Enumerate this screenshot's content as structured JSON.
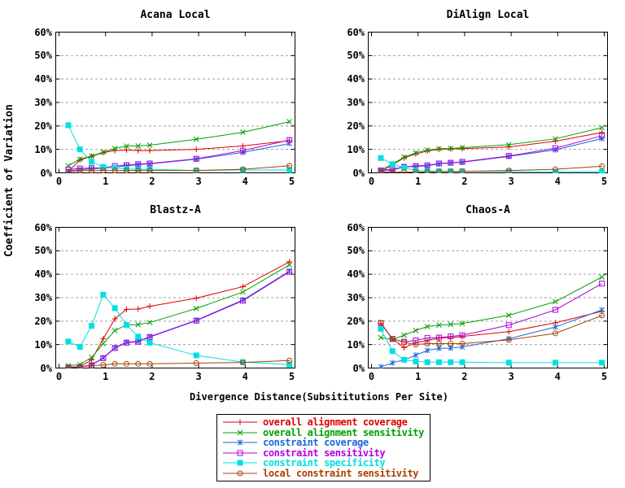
{
  "figure": {
    "ylabel": "Coefficient of Variation",
    "xlabel": "Divergence Distance(Subsititutions Per Site)"
  },
  "palette": {
    "axis": "#000000",
    "grid": "#a0a0a0",
    "background": "#ffffff"
  },
  "series_styles": [
    {
      "label": "overall alignment coverage",
      "color": "#e00000",
      "marker": "plus"
    },
    {
      "label": "overall alignment sensitivity",
      "color": "#00a000",
      "marker": "cross"
    },
    {
      "label": "constraint coverage",
      "color": "#1a66e0",
      "marker": "asterisk"
    },
    {
      "label": "constraint sensitivity",
      "color": "#b200e0",
      "marker": "square-open"
    },
    {
      "label": "constraint specificity",
      "color": "#00e0e0",
      "marker": "square-filled"
    },
    {
      "label": "local constraint sensitivity",
      "color": "#a84000",
      "marker": "circle-open"
    }
  ],
  "legend": {
    "position": "bottom-center"
  },
  "chart_data": [
    {
      "type": "line",
      "title": "Acana Local",
      "xlim": [
        0,
        5
      ],
      "ylim": [
        0,
        60
      ],
      "grid": true,
      "x_ticks": [
        "0",
        "1",
        "2",
        "3",
        "4",
        "5"
      ],
      "y_ticks": [
        "0%",
        "10%",
        "20%",
        "30%",
        "40%",
        "50%",
        "60%"
      ],
      "x": [
        0.2,
        0.45,
        0.7,
        0.95,
        1.2,
        1.45,
        1.7,
        1.95,
        2.95,
        3.95,
        4.95
      ],
      "series": [
        {
          "style": 0,
          "name": "overall alignment coverage",
          "values": [
            0.5,
            5.5,
            7.0,
            8.6,
            9.5,
            9.7,
            9.5,
            9.5,
            10.0,
            11.5,
            13.7
          ]
        },
        {
          "style": 1,
          "name": "overall alignment sensitivity",
          "values": [
            3.0,
            5.8,
            7.2,
            8.8,
            10.4,
            11.4,
            11.5,
            11.8,
            14.3,
            17.3,
            21.8
          ]
        },
        {
          "style": 2,
          "name": "constraint coverage",
          "values": [
            0.8,
            1.4,
            1.7,
            2.0,
            2.4,
            3.0,
            3.5,
            3.8,
            5.8,
            8.7,
            12.5
          ]
        },
        {
          "style": 3,
          "name": "constraint sensitivity",
          "values": [
            1.4,
            1.9,
            2.0,
            2.2,
            2.9,
            3.3,
            3.7,
            4.0,
            6.0,
            9.5,
            14.0
          ]
        },
        {
          "style": 4,
          "name": "constraint specificity",
          "values": [
            20.3,
            10.0,
            4.7,
            2.5,
            2.0,
            1.7,
            1.5,
            1.5,
            1.0,
            1.2,
            1.2
          ]
        },
        {
          "style": 5,
          "name": "local constraint sensitivity",
          "values": [
            0.4,
            1.0,
            1.0,
            1.0,
            1.0,
            1.0,
            1.0,
            1.0,
            1.0,
            1.5,
            3.0
          ]
        }
      ]
    },
    {
      "type": "line",
      "title": "DiAlign Local",
      "xlim": [
        0,
        5
      ],
      "ylim": [
        0,
        60
      ],
      "grid": true,
      "x_ticks": [
        "0",
        "1",
        "2",
        "3",
        "4",
        "5"
      ],
      "y_ticks": [
        "0%",
        "10%",
        "20%",
        "30%",
        "40%",
        "50%",
        "60%"
      ],
      "x": [
        0.2,
        0.45,
        0.7,
        0.95,
        1.2,
        1.45,
        1.7,
        1.95,
        2.95,
        3.95,
        4.95
      ],
      "series": [
        {
          "style": 0,
          "name": "overall alignment coverage",
          "values": [
            0.5,
            3.4,
            6.4,
            8.0,
            9.3,
            10.0,
            10.2,
            10.3,
            11.0,
            13.5,
            17.2
          ]
        },
        {
          "style": 1,
          "name": "overall alignment sensitivity",
          "values": [
            1.2,
            3.7,
            6.7,
            8.5,
            9.7,
            10.3,
            10.4,
            10.7,
            12.0,
            14.5,
            19.3
          ]
        },
        {
          "style": 2,
          "name": "constraint coverage",
          "values": [
            0.8,
            1.2,
            2.5,
            2.7,
            3.0,
            3.8,
            4.2,
            4.5,
            7.0,
            9.8,
            14.6
          ]
        },
        {
          "style": 3,
          "name": "constraint sensitivity",
          "values": [
            1.0,
            1.5,
            2.6,
            2.9,
            3.2,
            4.0,
            4.3,
            4.7,
            7.2,
            10.5,
            15.8
          ]
        },
        {
          "style": 4,
          "name": "constraint specificity",
          "values": [
            6.3,
            3.7,
            2.2,
            1.0,
            0.8,
            0.7,
            0.7,
            0.7,
            0.5,
            0.5,
            0.5
          ]
        },
        {
          "style": 5,
          "name": "local constraint sensitivity",
          "values": [
            0.3,
            0.3,
            0.3,
            0.4,
            0.4,
            0.5,
            0.5,
            0.6,
            1.0,
            1.5,
            2.8
          ]
        }
      ]
    },
    {
      "type": "line",
      "title": "Blastz-A",
      "xlim": [
        0,
        5
      ],
      "ylim": [
        0,
        60
      ],
      "grid": true,
      "x_ticks": [
        "0",
        "1",
        "2",
        "3",
        "4",
        "5"
      ],
      "y_ticks": [
        "0%",
        "10%",
        "20%",
        "30%",
        "40%",
        "50%",
        "60%"
      ],
      "x": [
        0.2,
        0.45,
        0.7,
        0.95,
        1.2,
        1.45,
        1.7,
        1.95,
        2.95,
        3.95,
        4.95
      ],
      "series": [
        {
          "style": 0,
          "name": "overall alignment coverage",
          "values": [
            0.3,
            0.6,
            3.5,
            12.5,
            21.0,
            25.0,
            25.2,
            26.3,
            29.8,
            34.7,
            45.3
          ]
        },
        {
          "style": 1,
          "name": "overall alignment sensitivity",
          "values": [
            1.0,
            1.5,
            4.5,
            10.4,
            16.0,
            18.4,
            18.5,
            19.4,
            25.4,
            32.4,
            44.0
          ]
        },
        {
          "style": 2,
          "name": "constraint coverage",
          "values": [
            0.3,
            0.5,
            1.3,
            4.4,
            8.7,
            11.0,
            11.4,
            13.4,
            20.4,
            29.0,
            41.3
          ]
        },
        {
          "style": 3,
          "name": "constraint sensitivity",
          "values": [
            0.2,
            0.4,
            1.2,
            4.2,
            8.5,
            10.8,
            11.2,
            13.2,
            20.2,
            28.7,
            41.0
          ]
        },
        {
          "style": 4,
          "name": "constraint specificity",
          "values": [
            11.3,
            9.0,
            18.0,
            31.3,
            25.5,
            18.4,
            13.4,
            10.8,
            5.4,
            2.5,
            1.5
          ]
        },
        {
          "style": 5,
          "name": "local constraint sensitivity",
          "values": [
            0.3,
            0.5,
            1.0,
            1.3,
            1.8,
            1.8,
            1.8,
            1.8,
            2.1,
            2.4,
            3.2
          ]
        }
      ]
    },
    {
      "type": "line",
      "title": "Chaos-A",
      "xlim": [
        0,
        5
      ],
      "ylim": [
        0,
        60
      ],
      "grid": true,
      "x_ticks": [
        "0",
        "1",
        "2",
        "3",
        "4",
        "5"
      ],
      "y_ticks": [
        "0%",
        "10%",
        "20%",
        "30%",
        "40%",
        "50%",
        "60%"
      ],
      "x": [
        0.2,
        0.45,
        0.7,
        0.95,
        1.2,
        1.45,
        1.7,
        1.95,
        2.95,
        3.95,
        4.95
      ],
      "series": [
        {
          "style": 0,
          "name": "overall alignment coverage",
          "values": [
            19.0,
            12.5,
            8.7,
            10.8,
            11.8,
            12.8,
            13.0,
            13.5,
            15.5,
            19.3,
            24.2
          ]
        },
        {
          "style": 1,
          "name": "overall alignment sensitivity",
          "values": [
            13.0,
            12.2,
            14.0,
            16.0,
            17.7,
            18.3,
            18.6,
            19.0,
            22.5,
            28.3,
            38.8
          ]
        },
        {
          "style": 2,
          "name": "constraint coverage",
          "values": [
            0.5,
            2.2,
            3.5,
            5.5,
            7.5,
            8.4,
            8.5,
            9.0,
            12.5,
            17.5,
            24.8
          ]
        },
        {
          "style": 3,
          "name": "constraint sensitivity",
          "values": [
            19.2,
            12.4,
            11.2,
            11.8,
            12.8,
            13.0,
            13.5,
            14.0,
            18.3,
            24.8,
            36.0
          ]
        },
        {
          "style": 4,
          "name": "constraint specificity",
          "values": [
            16.7,
            7.2,
            3.5,
            2.8,
            2.5,
            2.5,
            2.5,
            2.5,
            2.3,
            2.3,
            2.3
          ]
        },
        {
          "style": 5,
          "name": "local constraint sensitivity",
          "values": [
            19.3,
            12.5,
            11.0,
            10.0,
            10.4,
            10.4,
            10.4,
            10.4,
            12.0,
            14.8,
            22.4
          ]
        }
      ]
    }
  ]
}
